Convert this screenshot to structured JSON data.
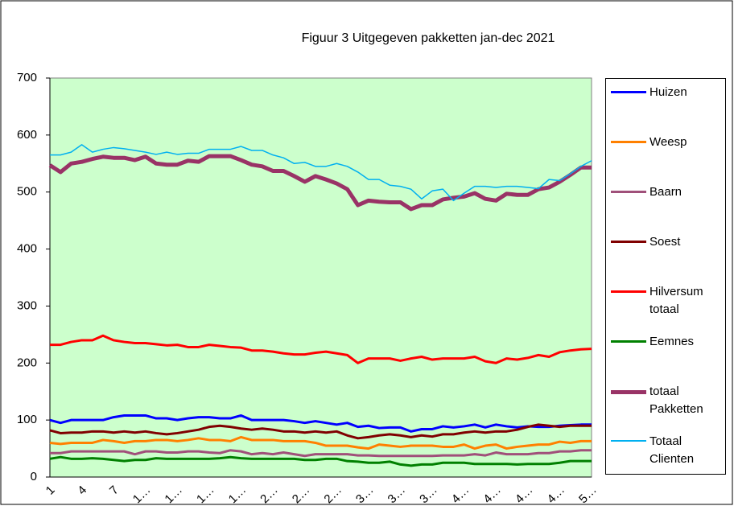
{
  "chart_data": {
    "type": "line",
    "title": "Figuur 3 Uitgegeven pakketten jan-dec 2021",
    "categories": [
      "1",
      null,
      null,
      "4",
      null,
      null,
      "7",
      null,
      null,
      "1…",
      null,
      null,
      "1…",
      null,
      null,
      "1…",
      null,
      null,
      "1…",
      null,
      null,
      "2…",
      null,
      null,
      "2…",
      null,
      null,
      "2…",
      null,
      null,
      "3…",
      null,
      null,
      "3…",
      null,
      null,
      "3…",
      null,
      null,
      "4…",
      null,
      null,
      "4…",
      null,
      null,
      "4…",
      null,
      null,
      "4…",
      null,
      null,
      "5…"
    ],
    "ylim": [
      0,
      700
    ],
    "yticks": [
      0,
      100,
      200,
      300,
      400,
      500,
      600,
      700
    ],
    "background": "#ccffcc",
    "series": [
      {
        "name": "Huizen",
        "color": "#0000ff",
        "width": 3,
        "values": [
          100,
          95,
          100,
          100,
          100,
          100,
          105,
          108,
          108,
          108,
          103,
          103,
          100,
          103,
          105,
          105,
          103,
          103,
          108,
          100,
          100,
          100,
          100,
          98,
          95,
          98,
          95,
          92,
          95,
          88,
          90,
          86,
          87,
          87,
          80,
          84,
          84,
          89,
          87,
          89,
          92,
          87,
          92,
          89,
          87,
          89,
          88,
          88,
          90,
          91,
          92,
          92
        ]
      },
      {
        "name": "Weesp",
        "color": "#ff8000",
        "width": 3,
        "values": [
          60,
          58,
          60,
          60,
          60,
          65,
          63,
          60,
          63,
          63,
          65,
          65,
          63,
          65,
          68,
          65,
          65,
          63,
          70,
          65,
          65,
          65,
          63,
          63,
          63,
          60,
          55,
          55,
          55,
          52,
          50,
          57,
          55,
          53,
          55,
          55,
          55,
          53,
          53,
          57,
          50,
          55,
          57,
          50,
          53,
          55,
          57,
          57,
          62,
          60,
          63,
          63
        ]
      },
      {
        "name": "Baarn",
        "color": "#a0507a",
        "width": 3,
        "values": [
          42,
          42,
          45,
          45,
          45,
          45,
          45,
          45,
          40,
          45,
          45,
          43,
          43,
          45,
          45,
          43,
          42,
          47,
          45,
          40,
          42,
          40,
          43,
          40,
          37,
          40,
          40,
          40,
          40,
          38,
          38,
          37,
          37,
          37,
          37,
          37,
          37,
          38,
          38,
          38,
          40,
          38,
          43,
          40,
          40,
          40,
          42,
          42,
          45,
          45,
          47,
          47
        ]
      },
      {
        "name": "Soest",
        "color": "#800000",
        "width": 3,
        "values": [
          82,
          77,
          78,
          78,
          80,
          80,
          78,
          80,
          78,
          80,
          77,
          75,
          77,
          80,
          83,
          88,
          90,
          88,
          85,
          83,
          85,
          83,
          80,
          80,
          78,
          80,
          78,
          80,
          73,
          68,
          70,
          73,
          75,
          73,
          70,
          73,
          71,
          75,
          75,
          78,
          80,
          78,
          80,
          80,
          83,
          88,
          92,
          90,
          88,
          90,
          90,
          90
        ]
      },
      {
        "name": "Hilversum totaal",
        "color": "#ff0000",
        "width": 3,
        "values": [
          232,
          232,
          237,
          240,
          240,
          248,
          240,
          237,
          235,
          235,
          233,
          231,
          232,
          228,
          228,
          232,
          230,
          228,
          227,
          222,
          222,
          220,
          217,
          215,
          215,
          218,
          220,
          217,
          214,
          200,
          208,
          208,
          208,
          204,
          208,
          211,
          206,
          208,
          208,
          208,
          211,
          203,
          200,
          208,
          206,
          209,
          214,
          211,
          219,
          222,
          224,
          225
        ]
      },
      {
        "name": "Eemnes",
        "color": "#008000",
        "width": 3,
        "values": [
          32,
          35,
          32,
          32,
          33,
          32,
          30,
          28,
          30,
          30,
          33,
          32,
          32,
          32,
          32,
          32,
          33,
          35,
          33,
          32,
          32,
          32,
          32,
          32,
          30,
          30,
          32,
          32,
          28,
          27,
          25,
          25,
          27,
          22,
          20,
          22,
          22,
          25,
          25,
          25,
          23,
          23,
          23,
          23,
          22,
          23,
          23,
          23,
          25,
          28,
          28,
          28
        ]
      },
      {
        "name": "totaal Pakketten",
        "color": "#993366",
        "width": 5,
        "values": [
          547,
          535,
          550,
          553,
          558,
          562,
          560,
          560,
          556,
          562,
          550,
          548,
          548,
          555,
          553,
          563,
          563,
          563,
          556,
          548,
          545,
          537,
          537,
          528,
          518,
          528,
          522,
          515,
          505,
          477,
          485,
          483,
          482,
          482,
          470,
          477,
          477,
          487,
          490,
          492,
          498,
          488,
          485,
          497,
          495,
          495,
          505,
          508,
          518,
          530,
          543,
          543
        ]
      },
      {
        "name": "Totaal Clienten",
        "color": "#00b0f0",
        "width": 1.5,
        "values": [
          565,
          565,
          570,
          583,
          570,
          575,
          578,
          576,
          573,
          570,
          566,
          570,
          566,
          568,
          568,
          575,
          575,
          575,
          580,
          573,
          573,
          565,
          560,
          550,
          552,
          545,
          545,
          550,
          545,
          535,
          522,
          522,
          512,
          510,
          505,
          488,
          502,
          505,
          485,
          498,
          510,
          510,
          508,
          510,
          510,
          508,
          506,
          522,
          520,
          532,
          545,
          555
        ]
      }
    ]
  }
}
